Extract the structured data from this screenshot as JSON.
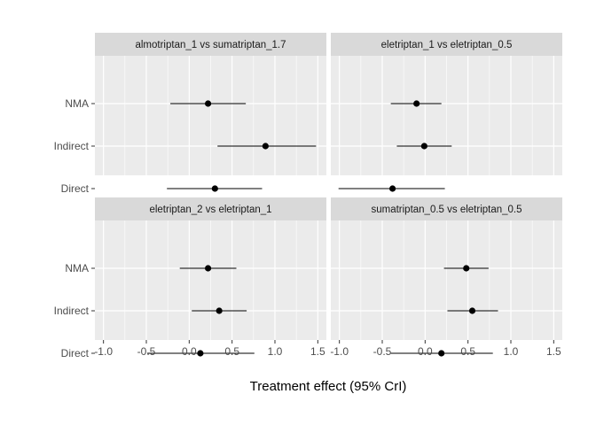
{
  "chart_data": {
    "type": "forest",
    "xlabel": "Treatment effect (95% CrI)",
    "ylabel": "",
    "xlim": [
      -1.1,
      1.6
    ],
    "xticks": [
      "-1.0",
      "-0.5",
      "0.0",
      "0.5",
      "1.0",
      "1.5"
    ],
    "xtick_values": [
      -1.0,
      -0.5,
      0.0,
      0.5,
      1.0,
      1.5
    ],
    "categories": [
      "NMA",
      "Indirect",
      "Direct"
    ],
    "grid": true,
    "colors": {
      "panel_bg": "#ebebeb",
      "strip_bg": "#d9d9d9",
      "grid": "#ffffff",
      "mark": "#000000"
    },
    "panels": [
      {
        "title": "almotriptan_1 vs sumatriptan_1.7",
        "rows": [
          {
            "label": "NMA",
            "est": 0.22,
            "lo": -0.22,
            "hi": 0.66
          },
          {
            "label": "Indirect",
            "est": 0.89,
            "lo": 0.33,
            "hi": 1.48
          },
          {
            "label": "Direct",
            "est": 0.3,
            "lo": -0.26,
            "hi": 0.85
          }
        ]
      },
      {
        "title": "eletriptan_1 vs eletriptan_0.5",
        "rows": [
          {
            "label": "NMA",
            "est": -0.1,
            "lo": -0.4,
            "hi": 0.19
          },
          {
            "label": "Indirect",
            "est": -0.01,
            "lo": -0.33,
            "hi": 0.31
          },
          {
            "label": "Direct",
            "est": -0.38,
            "lo": -1.01,
            "hi": 0.23
          }
        ]
      },
      {
        "title": "eletriptan_2 vs eletriptan_1",
        "rows": [
          {
            "label": "NMA",
            "est": 0.22,
            "lo": -0.11,
            "hi": 0.55
          },
          {
            "label": "Indirect",
            "est": 0.35,
            "lo": 0.03,
            "hi": 0.67
          },
          {
            "label": "Direct",
            "est": 0.13,
            "lo": -0.49,
            "hi": 0.76
          }
        ]
      },
      {
        "title": "sumatriptan_0.5 vs eletriptan_0.5",
        "rows": [
          {
            "label": "NMA",
            "est": 0.48,
            "lo": 0.22,
            "hi": 0.74
          },
          {
            "label": "Indirect",
            "est": 0.55,
            "lo": 0.26,
            "hi": 0.85
          },
          {
            "label": "Direct",
            "est": 0.19,
            "lo": -0.4,
            "hi": 0.79
          }
        ]
      }
    ]
  }
}
